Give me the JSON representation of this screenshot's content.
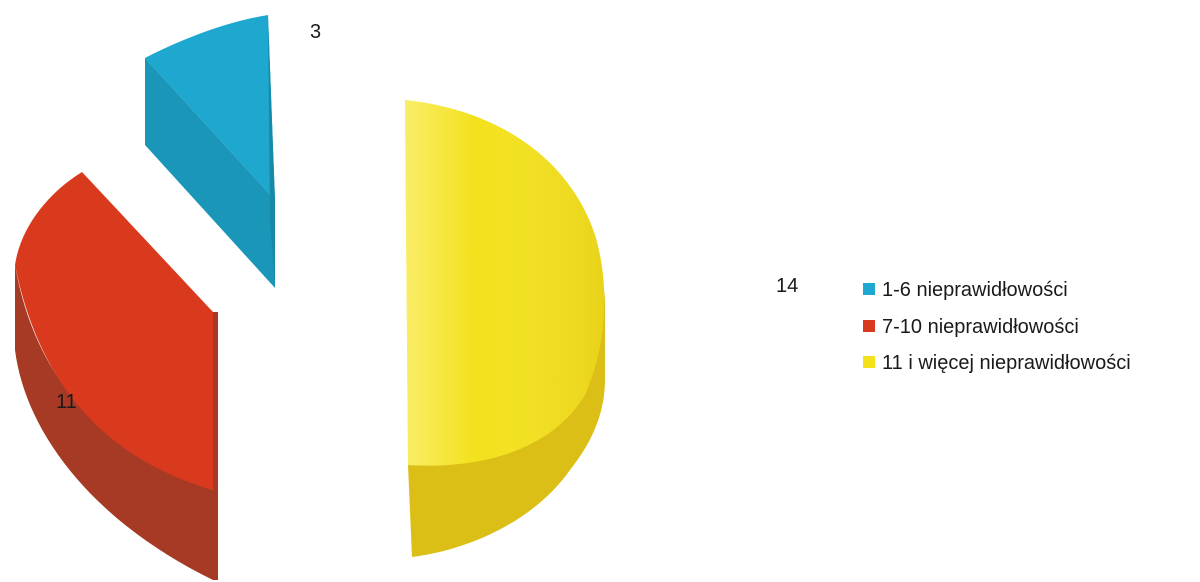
{
  "chart_data": {
    "type": "pie",
    "style": "3d-exploded",
    "legend_position": "right",
    "categories": [
      "1-6 nieprawidłowości",
      "7-10 nieprawidłowości",
      "11 i więcej nieprawidłowości"
    ],
    "values": [
      3,
      11,
      14
    ],
    "colors": {
      "top": [
        "#1ea7cf",
        "#d93a1e",
        "#f3e11c"
      ],
      "side": [
        "#178aa7",
        "#a63a25",
        "#dcbf16"
      ],
      "wall": [
        "#1a97b8",
        "#bf3a20",
        "#ead21a"
      ]
    }
  }
}
